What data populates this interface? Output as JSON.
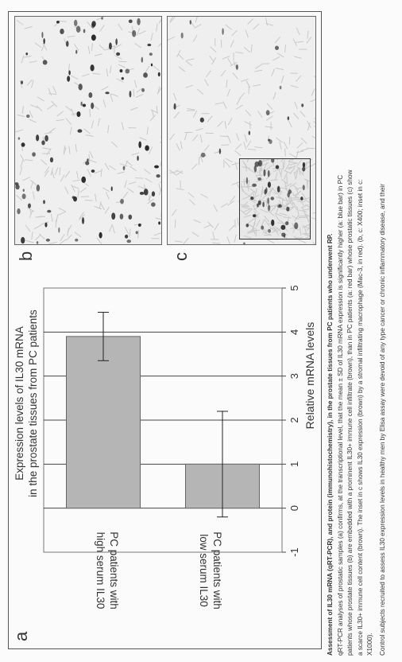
{
  "panels": {
    "a": "a",
    "b": "b",
    "c": "c"
  },
  "chart_data": {
    "type": "bar",
    "orientation": "horizontal",
    "title": "Expression levels of IL30 mRNA\nin the prostate tissues from PC patients",
    "xlabel": "Relative mRNA levels",
    "xlim": [
      -1,
      5
    ],
    "xticks": [
      -1,
      0,
      1,
      2,
      3,
      4,
      5
    ],
    "grid": true,
    "categories": [
      "PC patients with high serum IL30",
      "PC patients with low serum IL30"
    ],
    "values": [
      3.9,
      1.0
    ],
    "errors": [
      0.55,
      1.2
    ],
    "bar_color": "#b5b5b5"
  },
  "micrographs": {
    "b_alt": "Prostate tissue with IL30+ immune cell infiltrate",
    "c_alt": "Prostate tissue with scarce IL30+ immune cells and inset"
  },
  "caption": {
    "lines": [
      "Assessment of IL30 mRNA (qRT-PCR), and protein (immunohistochemistry), in the prostate tissues from PC patients who underwent RP.",
      "qRT-PCR analyses of prostatic samples (a) confirms, at the transcriptional level, that the mean ± SD of IL30 mRNA expression is significantly higher (a: blue bar) in PC",
      "patients whose prostate tissues (b) are embedded with a prominent IL30+ immune cell infiltrate (brown), than in PC patients (a: red bar) whose prostatic tissues (c) show",
      "a scarce IL30+ immune cell content (brown). The inset in c shows IL30 expression (brown) by a stromal infiltrating macrophage (Mac-3, in red). (b, c: X400; inset in c:",
      "X1000).",
      "Control subjects recruited to assess IL30 expression levels in healthy men by Elisa assay were devoid of any type cancer or chronic inflammatory disease, and their"
    ]
  }
}
